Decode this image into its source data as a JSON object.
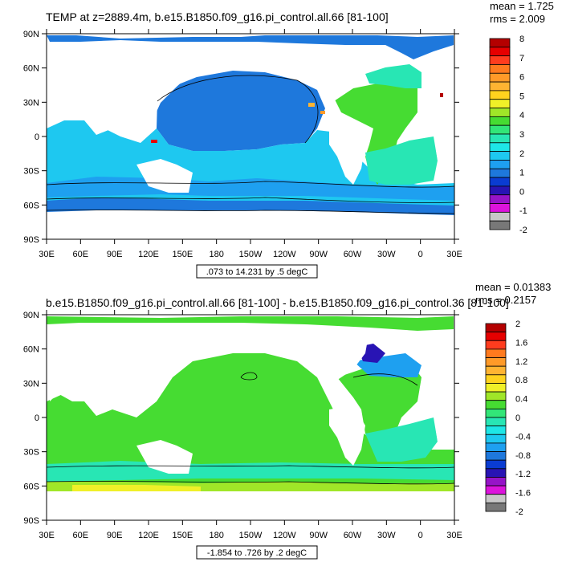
{
  "panels": [
    {
      "title": "TEMP at z=2889.4m, b.e15.B1850.f09_g16.pi_control.all.66 [81-100]",
      "stats": [
        "mean = 1.725",
        "rms = 2.009"
      ],
      "range_label": ".073 to 14.231 by .5 degC",
      "lat_labels": [
        "90N",
        "60N",
        "30N",
        "0",
        "30S",
        "60S",
        "90S"
      ],
      "lon_labels": [
        "30E",
        "60E",
        "90E",
        "120E",
        "150E",
        "180",
        "150W",
        "120W",
        "90W",
        "60W",
        "30W",
        "0",
        "30E"
      ],
      "colorbar": {
        "labels": [
          "8",
          "7",
          "6",
          "5",
          "4",
          "3",
          "2",
          "1",
          "0",
          "-1",
          "-2"
        ],
        "colors": [
          "#b40000",
          "#e60000",
          "#ff3c1e",
          "#ff7a1e",
          "#ff9a28",
          "#ffb432",
          "#ffd21e",
          "#f0f028",
          "#a0e628",
          "#46dc32",
          "#32e678",
          "#28e6b4",
          "#1ee6e6",
          "#1ec8f0",
          "#1ea0f0",
          "#1e78dc",
          "#0a3cd2",
          "#2814b4",
          "#9614c8",
          "#dc14dc",
          "#c8c8c8",
          "#787878"
        ]
      }
    },
    {
      "title": "b.e15.B1850.f09_g16.pi_control.all.66 [81-100] - b.e15.B1850.f09_g16.pi_control.36 [81-100]",
      "stats": [
        "mean = 0.01383",
        "rms = 0.2157"
      ],
      "range_label": "-1.854 to .726 by .2 degC",
      "lat_labels": [
        "90N",
        "60N",
        "30N",
        "0",
        "30S",
        "60S",
        "90S"
      ],
      "lon_labels": [
        "30E",
        "60E",
        "90E",
        "120E",
        "150E",
        "180",
        "150W",
        "120W",
        "90W",
        "60W",
        "30W",
        "0",
        "30E"
      ],
      "colorbar": {
        "labels": [
          "2",
          "1.6",
          "1.2",
          "0.8",
          "0.4",
          "0",
          "-0.4",
          "-0.8",
          "-1.2",
          "-1.6",
          "-2"
        ],
        "colors": [
          "#b40000",
          "#e60000",
          "#ff3c1e",
          "#ff7a1e",
          "#ff9a28",
          "#ffb432",
          "#ffd21e",
          "#f0f028",
          "#a0e628",
          "#46dc32",
          "#32e678",
          "#28e6b4",
          "#1ee6e6",
          "#1ec8f0",
          "#1ea0f0",
          "#1e78dc",
          "#0a3cd2",
          "#2814b4",
          "#9614c8",
          "#dc14dc",
          "#c8c8c8",
          "#787878"
        ]
      }
    }
  ]
}
